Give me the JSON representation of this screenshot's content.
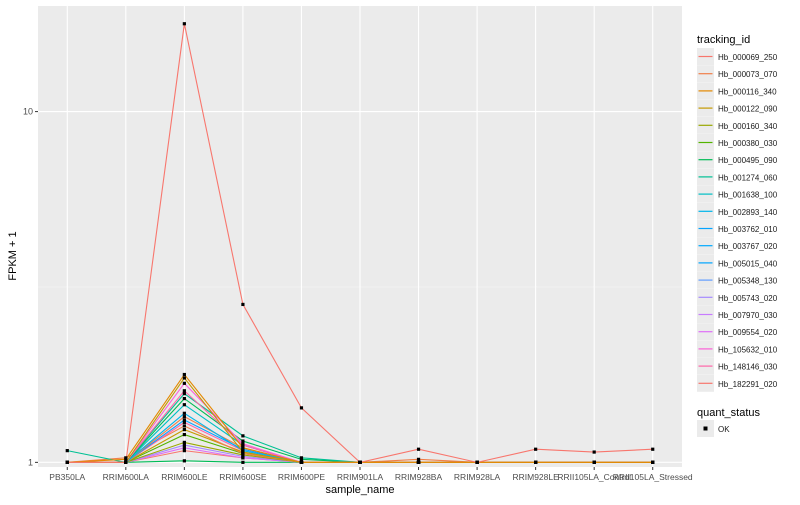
{
  "chart_data": {
    "type": "line",
    "title": "",
    "xlabel": "sample_name",
    "ylabel": "FPKM + 1",
    "y_scale": "log10",
    "ylim": [
      0.97,
      20
    ],
    "y_ticks": [
      1,
      10
    ],
    "y_tick_labels": [
      "1",
      "10"
    ],
    "grid": true,
    "background": "#ebebeb",
    "categories": [
      "PB350LA",
      "RRIM600LA",
      "RRIM600LE",
      "RRIM600SE",
      "RRIM600PE",
      "RRIM901LA",
      "RRIM928BA",
      "RRIM928LA",
      "RRIM928LE",
      "RRII105LA_Control",
      "RRII105LA_Stressed"
    ],
    "legend": {
      "position": "right",
      "color_title": "tracking_id",
      "shape_title": "quant_status",
      "shape_entries": [
        "OK"
      ]
    },
    "series": [
      {
        "name": "Hb_000069_250",
        "color": "#F8766D",
        "values": [
          1.0,
          1.0,
          1.08,
          1.03,
          1.0,
          1.0,
          1.0,
          1.0,
          1.0,
          1.0,
          1.0
        ]
      },
      {
        "name": "Hb_000073_070",
        "color": "#F07F4A",
        "values": [
          1.0,
          1.03,
          1.27,
          1.06,
          1.0,
          1.0,
          1.02,
          1.0,
          1.0,
          1.0,
          1.0
        ]
      },
      {
        "name": "Hb_000116_340",
        "color": "#E38900",
        "values": [
          1.0,
          1.02,
          1.78,
          1.1,
          1.0,
          1.0,
          1.0,
          1.0,
          1.0,
          1.0,
          1.0
        ]
      },
      {
        "name": "Hb_000122_090",
        "color": "#C49A00",
        "values": [
          1.0,
          1.0,
          1.74,
          1.07,
          1.0,
          1.0,
          1.0,
          1.0,
          1.0,
          1.0,
          1.0
        ]
      },
      {
        "name": "Hb_000160_340",
        "color": "#99A800",
        "values": [
          1.0,
          1.0,
          1.14,
          1.05,
          1.0,
          1.0,
          1.0,
          1.0,
          1.0,
          1.0,
          1.0
        ]
      },
      {
        "name": "Hb_000380_030",
        "color": "#53B400",
        "values": [
          1.0,
          1.0,
          1.2,
          1.06,
          1.0,
          1.0,
          1.0,
          1.0,
          1.0,
          1.0,
          1.0
        ]
      },
      {
        "name": "Hb_000495_090",
        "color": "#00BC56",
        "values": [
          1.0,
          1.0,
          1.01,
          1.0,
          1.0,
          1.0,
          1.0,
          1.0,
          1.0,
          1.0,
          1.0
        ]
      },
      {
        "name": "Hb_001274_060",
        "color": "#00C094",
        "values": [
          1.08,
          1.0,
          1.57,
          1.19,
          1.03,
          1.0,
          1.0,
          1.0,
          1.0,
          1.0,
          1.0
        ]
      },
      {
        "name": "Hb_001638_100",
        "color": "#00BFC4",
        "values": [
          1.0,
          1.0,
          1.46,
          1.12,
          1.0,
          1.0,
          1.0,
          1.0,
          1.0,
          1.0,
          1.0
        ]
      },
      {
        "name": "Hb_002893_140",
        "color": "#00B6EB",
        "values": [
          1.0,
          1.0,
          1.38,
          1.08,
          1.0,
          1.0,
          1.0,
          1.0,
          1.0,
          1.0,
          1.0
        ]
      },
      {
        "name": "Hb_003762_010",
        "color": "#06A4FF",
        "values": [
          1.0,
          1.0,
          1.32,
          1.09,
          1.0,
          1.0,
          1.0,
          1.0,
          1.0,
          1.0,
          1.0
        ]
      },
      {
        "name": "Hb_003767_020",
        "color": "#A58AFF",
        "values": [
          1.0,
          1.0,
          1.12,
          1.04,
          1.0,
          1.0,
          1.0,
          1.0,
          1.0,
          1.0,
          1.0
        ]
      },
      {
        "name": "Hb_005015_040",
        "color": "#DF70F8",
        "values": [
          1.0,
          1.0,
          1.1,
          1.03,
          1.0,
          1.0,
          1.0,
          1.0,
          1.0,
          1.0,
          1.0
        ]
      },
      {
        "name": "Hb_005348_130",
        "color": "#FB61D7",
        "values": [
          1.0,
          1.0,
          1.68,
          1.13,
          1.0,
          1.0,
          1.0,
          1.0,
          1.0,
          1.0,
          1.0
        ]
      },
      {
        "name": "Hb_005743_020",
        "color": "#FF66A8",
        "values": [
          1.0,
          1.0,
          1.3,
          1.08,
          1.0,
          1.0,
          1.0,
          1.0,
          1.0,
          1.0,
          1.0
        ]
      },
      {
        "name": "Hb_007970_030",
        "color": "#F8766D",
        "values": [
          1.0,
          1.0,
          17.8,
          2.82,
          1.43,
          1.0,
          1.09,
          1.0,
          1.09,
          1.07,
          1.09
        ]
      },
      {
        "name": "Hb_009554_020",
        "color": "#F07F4A",
        "values": [
          1.0,
          1.0,
          1.35,
          1.1,
          1.0,
          1.0,
          1.0,
          1.0,
          1.0,
          1.0,
          1.0
        ]
      },
      {
        "name": "Hb_105632_010",
        "color": "#00BC56",
        "values": [
          1.0,
          1.0,
          1.52,
          1.15,
          1.02,
          1.0,
          1.0,
          1.0,
          1.0,
          1.0,
          1.0
        ]
      },
      {
        "name": "Hb_148146_030",
        "color": "#C49A00",
        "values": [
          1.0,
          1.0,
          1.24,
          1.07,
          1.0,
          1.0,
          1.0,
          1.0,
          1.0,
          1.0,
          1.0
        ]
      },
      {
        "name": "Hb_182291_020",
        "color": "#FF66A8",
        "values": [
          1.0,
          1.0,
          1.6,
          1.12,
          1.0,
          1.0,
          1.0,
          1.0,
          1.0,
          1.0,
          1.0
        ]
      }
    ],
    "legend_entries": [
      {
        "label": "Hb_000069_250",
        "color": "#F8766D"
      },
      {
        "label": "Hb_000073_070",
        "color": "#F07F4A"
      },
      {
        "label": "Hb_000116_340",
        "color": "#E38900"
      },
      {
        "label": "Hb_000122_090",
        "color": "#C49A00"
      },
      {
        "label": "Hb_000160_340",
        "color": "#99A800"
      },
      {
        "label": "Hb_000380_030",
        "color": "#53B400"
      },
      {
        "label": "Hb_000495_090",
        "color": "#00BC56"
      },
      {
        "label": "Hb_001274_060",
        "color": "#00C094"
      },
      {
        "label": "Hb_001638_100",
        "color": "#00BFC4"
      },
      {
        "label": "Hb_002893_140",
        "color": "#00B6EB"
      },
      {
        "label": "Hb_003762_010",
        "color": "#06A4FF"
      },
      {
        "label": "Hb_003767_020",
        "color": "#00A9FF"
      },
      {
        "label": "Hb_005015_040",
        "color": "#00A5FF"
      },
      {
        "label": "Hb_005348_130",
        "color": "#619CFF"
      },
      {
        "label": "Hb_005743_020",
        "color": "#A58AFF"
      },
      {
        "label": "Hb_007970_030",
        "color": "#C77CFF"
      },
      {
        "label": "Hb_009554_020",
        "color": "#DF70F8"
      },
      {
        "label": "Hb_105632_010",
        "color": "#FB61D7"
      },
      {
        "label": "Hb_148146_030",
        "color": "#FF66A8"
      },
      {
        "label": "Hb_182291_020",
        "color": "#F8766D"
      }
    ]
  }
}
